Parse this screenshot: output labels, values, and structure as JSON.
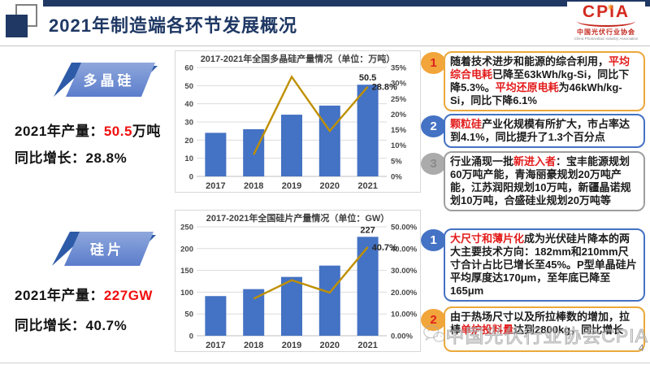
{
  "header": {
    "title": "2021年制造端各环节发展概况",
    "logo": {
      "acronym": "CPIA",
      "cn": "中国光伏行业协会",
      "en": "China Photovoltaic Industry Association"
    }
  },
  "colors": {
    "navy": "#1F3864",
    "bar_blue": "#4472C4",
    "line_gold": "#BF9000",
    "red_text": "#E31B1B",
    "gold_border": "#EBA83A",
    "blue_border": "#4472C4",
    "gray_border": "#9E9E9E"
  },
  "polysilicon": {
    "banner": "多晶硅",
    "production_label": "2021年产量：",
    "production_value": "50.5",
    "production_unit": "万吨",
    "growth_label": "同比增长：",
    "growth_value": "28.8%"
  },
  "wafer": {
    "banner": "硅片",
    "production_label": "2021年产量：",
    "production_value": "227GW",
    "production_unit": "",
    "growth_label": "同比增长：",
    "growth_value": "40.7%"
  },
  "chart_data": [
    {
      "type": "bar+line",
      "title": "2017-2021年全国多晶硅产量情况（单位：万吨）",
      "categories": [
        "2017",
        "2018",
        "2019",
        "2020",
        "2021"
      ],
      "series": [
        {
          "name": "产量（万吨）",
          "type": "bar",
          "axis": "left",
          "color": "#4472C4",
          "values": [
            24,
            26,
            34,
            39,
            50.5
          ]
        },
        {
          "name": "同比增长",
          "type": "line",
          "axis": "right",
          "color": "#BF9000",
          "values": [
            null,
            7,
            32,
            14.6,
            28.8
          ]
        }
      ],
      "left_axis": {
        "min": 0,
        "max": 60,
        "ticks": [
          "0",
          "10",
          "20",
          "30",
          "40",
          "50",
          "60"
        ]
      },
      "right_axis": {
        "min": 0,
        "max": 35,
        "ticks": [
          "0%",
          "5%",
          "10%",
          "15%",
          "20%",
          "25%",
          "30%",
          "35%"
        ]
      },
      "point_labels": [
        {
          "series": 0,
          "index": 4,
          "text": "50.5"
        },
        {
          "series": 1,
          "index": 4,
          "text": "28.8%"
        }
      ],
      "grid": true,
      "legend": "none"
    },
    {
      "type": "bar+line",
      "title": "2017-2021年全国硅片产量情况（单位：GW）",
      "categories": [
        "2017",
        "2018",
        "2019",
        "2020",
        "2021"
      ],
      "series": [
        {
          "name": "产量（GW）",
          "type": "bar",
          "axis": "left",
          "color": "#4472C4",
          "values": [
            91,
            107,
            135,
            161,
            227
          ]
        },
        {
          "name": "同比增长",
          "type": "line",
          "axis": "right",
          "color": "#BF9000",
          "values": [
            null,
            17,
            25.5,
            19.8,
            40.7
          ]
        }
      ],
      "left_axis": {
        "min": 0,
        "max": 250,
        "ticks": [
          "0",
          "50",
          "100",
          "150",
          "200",
          "250"
        ]
      },
      "right_axis": {
        "min": 0,
        "max": 50,
        "ticks": [
          "0.00%",
          "10.00%",
          "20.00%",
          "30.00%",
          "40.00%",
          "50.00%"
        ]
      },
      "point_labels": [
        {
          "series": 0,
          "index": 4,
          "text": "227"
        },
        {
          "series": 1,
          "index": 4,
          "text": "40.7%"
        }
      ],
      "grid": true,
      "legend": "none"
    }
  ],
  "notes": {
    "polysilicon": [
      {
        "num": "1",
        "segments": [
          {
            "text": "随着技术进步和能源的综合利用，",
            "red": false
          },
          {
            "text": "平均综合电耗",
            "red": true
          },
          {
            "text": "已降至63kWh/kg-Si，同比下降5.3%。",
            "red": false
          },
          {
            "text": "平均还原电耗",
            "red": true
          },
          {
            "text": "为46kWh/kg-Si，同比下降6.1%",
            "red": false
          }
        ]
      },
      {
        "num": "2",
        "segments": [
          {
            "text": "颗粒硅",
            "red": true
          },
          {
            "text": "产业化规模有所扩大，市占率达到4.1%，同比提升了1.3个百分点",
            "red": false
          }
        ]
      },
      {
        "num": "3",
        "segments": [
          {
            "text": "行业涌现一批",
            "red": false
          },
          {
            "text": "新进入者",
            "red": true
          },
          {
            "text": "：宝丰能源规划60万吨产能，青海丽豪规划20万吨产能，江苏润阳规划10万吨，新疆晶诺规划10万吨，合盛硅业规划20万吨等",
            "red": false
          }
        ]
      }
    ],
    "wafer": [
      {
        "num": "1",
        "segments": [
          {
            "text": "大尺寸和薄片化",
            "red": true
          },
          {
            "text": "成为光伏硅片降本的两大主要技术方向：182mm和210mm尺寸合计占比已增长至45%。P型单晶硅片平均厚度达170μm，至年底已降至165μm",
            "red": false
          }
        ]
      },
      {
        "num": "2",
        "segments": [
          {
            "text": "由于热场尺寸以及所拉棒数的增加，拉棒",
            "red": false
          },
          {
            "text": "单炉投料量",
            "red": true
          },
          {
            "text": "达到2800kg，同比增长",
            "red": false
          }
        ]
      }
    ]
  },
  "watermark": "中国光伏行业协会CPIA",
  "page_number": "4"
}
